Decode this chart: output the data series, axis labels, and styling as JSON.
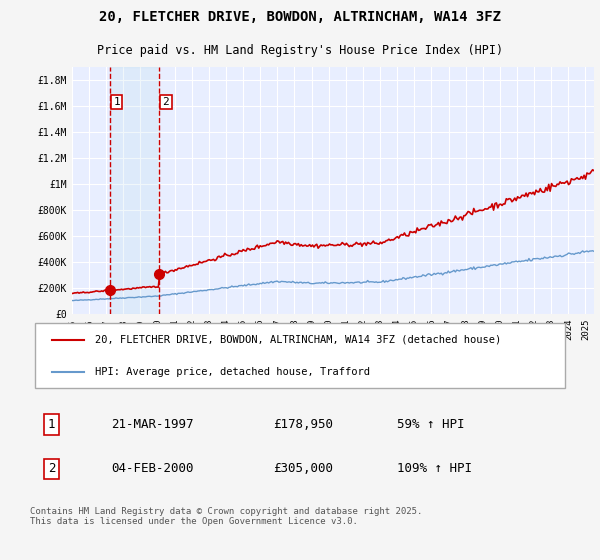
{
  "title": "20, FLETCHER DRIVE, BOWDON, ALTRINCHAM, WA14 3FZ",
  "subtitle": "Price paid vs. HM Land Registry's House Price Index (HPI)",
  "legend_line1": "20, FLETCHER DRIVE, BOWDON, ALTRINCHAM, WA14 3FZ (detached house)",
  "legend_line2": "HPI: Average price, detached house, Trafford",
  "footer": "Contains HM Land Registry data © Crown copyright and database right 2025.\nThis data is licensed under the Open Government Licence v3.0.",
  "purchase1": {
    "label": "1",
    "date": "21-MAR-1997",
    "price": 178950,
    "pct": "59% ↑ HPI"
  },
  "purchase2": {
    "label": "2",
    "date": "04-FEB-2000",
    "price": 305000,
    "pct": "109% ↑ HPI"
  },
  "ylim": [
    0,
    1900000
  ],
  "yticks": [
    0,
    200000,
    400000,
    600000,
    800000,
    1000000,
    1200000,
    1400000,
    1600000,
    1800000
  ],
  "ytick_labels": [
    "£0",
    "£200K",
    "£400K",
    "£600K",
    "£800K",
    "£1M",
    "£1.2M",
    "£1.4M",
    "£1.6M",
    "£1.8M"
  ],
  "plot_bg": "#e8eeff",
  "line_color_red": "#cc0000",
  "line_color_blue": "#6699cc",
  "vline1_x": 1997.22,
  "vline2_x": 2000.09,
  "purchase1_year": 1997.22,
  "purchase1_price": 178950,
  "purchase2_year": 2000.09,
  "purchase2_price": 305000,
  "xmin": 1995.0,
  "xmax": 2025.5,
  "xtick_years": [
    1995,
    1996,
    1997,
    1998,
    1999,
    2000,
    2001,
    2002,
    2003,
    2004,
    2005,
    2006,
    2007,
    2008,
    2009,
    2010,
    2011,
    2012,
    2013,
    2014,
    2015,
    2016,
    2017,
    2018,
    2019,
    2020,
    2021,
    2022,
    2023,
    2024,
    2025
  ]
}
